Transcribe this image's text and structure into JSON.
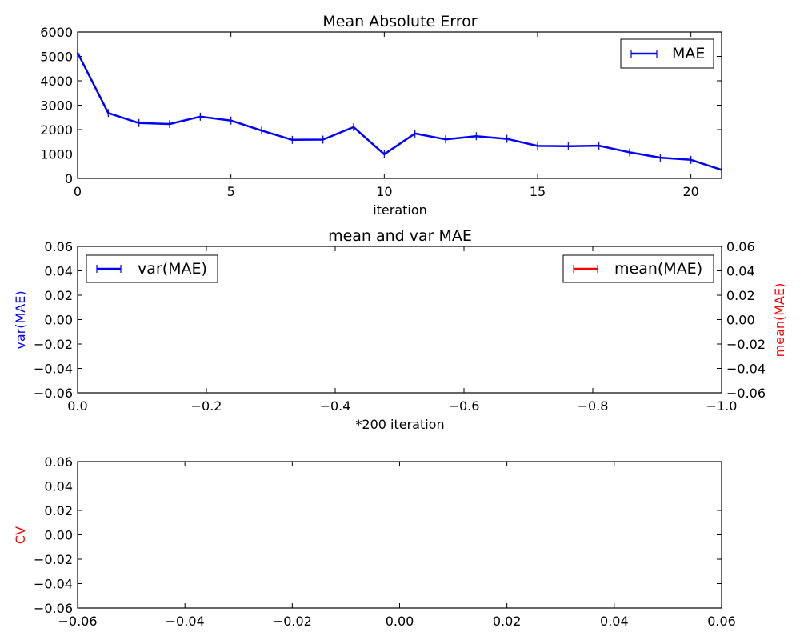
{
  "chart_data": [
    {
      "type": "line",
      "title": "Mean Absolute Error",
      "xlabel": "iteration",
      "xlim": [
        0,
        21
      ],
      "ylim": [
        0,
        6000
      ],
      "xticks": [
        "0",
        "5",
        "10",
        "15",
        "20"
      ],
      "yticks": [
        "0",
        "1000",
        "2000",
        "3000",
        "4000",
        "5000",
        "6000"
      ],
      "legend": {
        "position": "upper right",
        "entries": [
          {
            "label": "MAE",
            "color": "#0000ff"
          }
        ]
      },
      "series": [
        {
          "name": "MAE",
          "color": "#0000ff",
          "marker": "vertical-tick",
          "x": [
            0,
            1,
            2,
            3,
            4,
            5,
            6,
            7,
            8,
            9,
            10,
            11,
            12,
            13,
            14,
            15,
            16,
            17,
            18,
            19,
            20,
            21
          ],
          "y": [
            5150,
            2680,
            2270,
            2230,
            2530,
            2370,
            1960,
            1580,
            1590,
            2100,
            990,
            1840,
            1600,
            1730,
            1620,
            1330,
            1320,
            1340,
            1070,
            850,
            760,
            350
          ]
        }
      ]
    },
    {
      "type": "line",
      "title": "mean and var MAE",
      "xlabel": "*200 iteration",
      "ylabel": "var(MAE)",
      "ylabel_color": "#0000ff",
      "ylabel_right": "mean(MAE)",
      "ylabel_right_color": "#ff0000",
      "xlim": [
        0.0,
        -1.0
      ],
      "ylim": [
        -0.06,
        0.06
      ],
      "xticks": [
        "0.0",
        "−0.2",
        "−0.4",
        "−0.6",
        "−0.8",
        "−1.0"
      ],
      "yticks": [
        "−0.06",
        "−0.04",
        "−0.02",
        "0.00",
        "0.02",
        "0.04",
        "0.06"
      ],
      "legend": [
        {
          "position": "upper left",
          "label": "var(MAE)",
          "color": "#0000ff"
        },
        {
          "position": "upper right",
          "label": "mean(MAE)",
          "color": "#ff0000"
        }
      ],
      "series": []
    },
    {
      "type": "line",
      "ylabel": "CV",
      "ylabel_color": "#ff0000",
      "xlim": [
        -0.06,
        0.06
      ],
      "ylim": [
        -0.06,
        0.06
      ],
      "xticks": [
        "−0.06",
        "−0.04",
        "−0.02",
        "0.00",
        "0.02",
        "0.04",
        "0.06"
      ],
      "yticks": [
        "−0.06",
        "−0.04",
        "−0.02",
        "0.00",
        "0.02",
        "0.04",
        "0.06"
      ],
      "series": []
    }
  ]
}
